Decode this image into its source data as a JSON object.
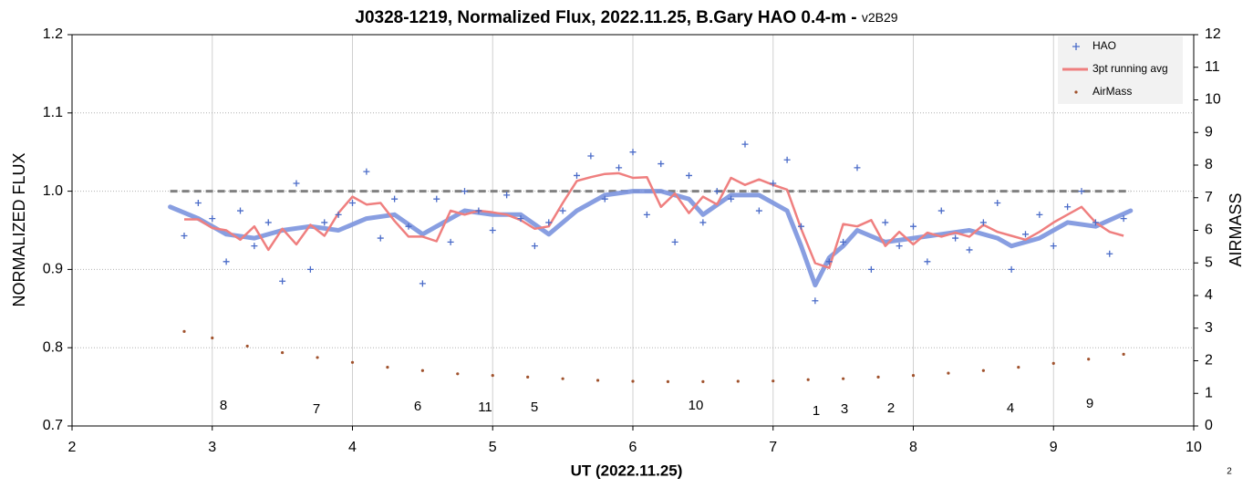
{
  "chart_data": {
    "type": "scatter",
    "title": "J0328-1219, Normalized Flux, 2022.11.25, B.Gary HAO 0.4-m - ",
    "subtitle": "v2B29",
    "x_label": "UT (2022.11.25)",
    "y_label": "NORMALIZED FLUX",
    "y2_label": "AIRMASS",
    "page_label": "2",
    "xlim": [
      2,
      10
    ],
    "xticks": [
      2,
      3,
      4,
      5,
      6,
      7,
      8,
      9,
      10
    ],
    "ylim": [
      0.7,
      1.2
    ],
    "yticks": [
      0.7,
      0.8,
      0.9,
      {
        "value": 1,
        "label": "1.0"
      },
      1.1,
      1.2
    ],
    "y2lim": [
      0,
      12
    ],
    "y2ticks": [
      0,
      1,
      2,
      3,
      4,
      5,
      6,
      7,
      8,
      9,
      10,
      11,
      12
    ],
    "grid": true,
    "legend": "top-right",
    "series": [
      {
        "name": "HAO",
        "kind": "points",
        "color": "#4a6bc8",
        "x": [
          2.8,
          2.9,
          3.0,
          3.1,
          3.2,
          3.3,
          3.4,
          3.5,
          3.6,
          3.7,
          3.8,
          3.9,
          4.0,
          4.1,
          4.2,
          4.3,
          4.4,
          4.5,
          4.6,
          4.7,
          4.8,
          4.9,
          5.0,
          5.1,
          5.2,
          5.3,
          5.4,
          5.5,
          5.6,
          5.7,
          5.8,
          5.9,
          6.0,
          6.1,
          6.2,
          6.3,
          6.4,
          6.5,
          6.6,
          6.7,
          6.8,
          6.9,
          7.0,
          7.1,
          7.2,
          7.3,
          7.4,
          7.5,
          7.6,
          7.7,
          7.8,
          7.9,
          8.0,
          8.1,
          8.2,
          8.3,
          8.4,
          8.5,
          8.6,
          8.7,
          8.8,
          8.9,
          9.0,
          9.1,
          9.2,
          9.3,
          9.4,
          9.5
        ],
        "values": [
          0.943,
          0.985,
          0.965,
          0.91,
          0.975,
          0.93,
          0.96,
          0.885,
          1.01,
          0.9,
          0.96,
          0.97,
          0.985,
          1.025,
          0.94,
          0.99,
          0.955,
          0.882,
          0.99,
          0.935,
          1.0,
          0.975,
          0.95,
          0.995,
          0.965,
          0.93,
          0.96,
          0.975,
          1.02,
          1.045,
          0.99,
          1.03,
          1.05,
          0.97,
          1.035,
          0.935,
          1.02,
          0.96,
          1.0,
          0.99,
          1.06,
          0.975,
          1.01,
          1.04,
          0.955,
          0.86,
          0.91,
          0.935,
          1.03,
          0.9,
          0.96,
          0.93,
          0.955,
          0.91,
          0.975,
          0.94,
          0.925,
          0.96,
          0.985,
          0.9,
          0.945,
          0.97,
          0.93,
          0.98,
          1.0,
          0.96,
          0.92,
          0.965
        ]
      },
      {
        "name": "3pt running avg",
        "kind": "line",
        "color": "#ef7f7f",
        "x": [
          2.8,
          2.9,
          3.0,
          3.1,
          3.2,
          3.3,
          3.4,
          3.5,
          3.6,
          3.7,
          3.8,
          3.9,
          4.0,
          4.1,
          4.2,
          4.3,
          4.4,
          4.5,
          4.6,
          4.7,
          4.8,
          4.9,
          5.0,
          5.1,
          5.2,
          5.3,
          5.4,
          5.5,
          5.6,
          5.7,
          5.8,
          5.9,
          6.0,
          6.1,
          6.2,
          6.3,
          6.4,
          6.5,
          6.6,
          6.7,
          6.8,
          6.9,
          7.0,
          7.1,
          7.2,
          7.3,
          7.4,
          7.5,
          7.6,
          7.7,
          7.8,
          7.9,
          8.0,
          8.1,
          8.2,
          8.3,
          8.4,
          8.5,
          8.6,
          8.7,
          8.8,
          8.9,
          9.0,
          9.1,
          9.2,
          9.3,
          9.4,
          9.5
        ],
        "values": [
          0.964,
          0.964,
          0.953,
          0.95,
          0.938,
          0.955,
          0.925,
          0.952,
          0.932,
          0.957,
          0.943,
          0.972,
          0.993,
          0.983,
          0.985,
          0.962,
          0.942,
          0.942,
          0.936,
          0.975,
          0.97,
          0.975,
          0.973,
          0.97,
          0.963,
          0.952,
          0.955,
          0.985,
          1.013,
          1.018,
          1.022,
          1.023,
          1.017,
          1.018,
          0.98,
          0.997,
          0.972,
          0.993,
          0.983,
          1.017,
          1.008,
          1.015,
          1.008,
          1.002,
          0.952,
          0.908,
          0.902,
          0.958,
          0.955,
          0.963,
          0.93,
          0.948,
          0.932,
          0.947,
          0.942,
          0.947,
          0.942,
          0.957,
          0.948,
          0.943,
          0.938,
          0.948,
          0.96,
          0.97,
          0.98,
          0.96,
          0.948,
          0.943
        ]
      },
      {
        "name": "AirMass",
        "kind": "dots",
        "axis": "y2",
        "color": "#a0522d",
        "x": [
          2.8,
          3.0,
          3.25,
          3.5,
          3.75,
          4.0,
          4.25,
          4.5,
          4.75,
          5.0,
          5.25,
          5.5,
          5.75,
          6.0,
          6.25,
          6.5,
          6.75,
          7.0,
          7.25,
          7.5,
          7.75,
          8.0,
          8.25,
          8.5,
          8.75,
          9.0,
          9.25,
          9.5
        ],
        "values": [
          2.9,
          2.7,
          2.45,
          2.25,
          2.1,
          1.95,
          1.8,
          1.7,
          1.6,
          1.55,
          1.5,
          1.45,
          1.4,
          1.37,
          1.36,
          1.36,
          1.37,
          1.38,
          1.42,
          1.45,
          1.5,
          1.55,
          1.62,
          1.7,
          1.8,
          1.92,
          2.05,
          2.2
        ]
      }
    ],
    "fit": {
      "color": "#7b93de",
      "x": [
        2.7,
        2.9,
        3.1,
        3.3,
        3.5,
        3.7,
        3.9,
        4.1,
        4.3,
        4.5,
        4.6,
        4.8,
        5.0,
        5.2,
        5.4,
        5.6,
        5.8,
        6.0,
        6.2,
        6.4,
        6.5,
        6.7,
        6.9,
        7.1,
        7.2,
        7.3,
        7.4,
        7.5,
        7.6,
        7.8,
        8.0,
        8.2,
        8.4,
        8.6,
        8.7,
        8.9,
        9.1,
        9.3,
        9.55
      ],
      "values": [
        0.98,
        0.965,
        0.945,
        0.94,
        0.95,
        0.955,
        0.95,
        0.965,
        0.97,
        0.945,
        0.955,
        0.975,
        0.97,
        0.97,
        0.945,
        0.975,
        0.995,
        1.0,
        1.0,
        0.99,
        0.97,
        0.995,
        0.995,
        0.975,
        0.93,
        0.88,
        0.915,
        0.93,
        0.95,
        0.935,
        0.94,
        0.945,
        0.95,
        0.94,
        0.93,
        0.94,
        0.96,
        0.955,
        0.975
      ]
    },
    "reference": {
      "value": 1,
      "x": [
        2.7,
        9.55
      ],
      "color": "#808080"
    },
    "annotations": [
      "8",
      "7",
      "6",
      "11",
      "5",
      "10",
      "1",
      "3",
      "2",
      "4",
      "9"
    ]
  }
}
